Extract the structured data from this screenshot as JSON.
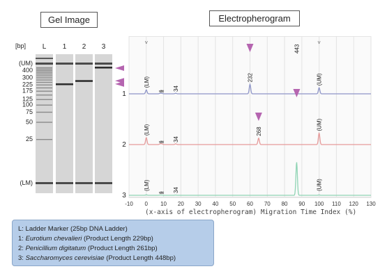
{
  "gel": {
    "title": "Gel Image",
    "unit": "[bp]",
    "lanes": [
      "L",
      "1",
      "2",
      "3"
    ],
    "size_labels": [
      "(UM)",
      "400",
      "300",
      "225",
      "175",
      "125",
      "100",
      "75",
      "50",
      "25",
      "(LM)"
    ],
    "ladder_sizes": [
      400,
      300,
      250,
      225,
      200,
      175,
      150,
      125,
      100,
      75,
      50,
      25
    ],
    "sample_bands": [
      229,
      261,
      448
    ]
  },
  "electropherogram": {
    "title": "Electropherogram",
    "x_caption": "(x-axis of electropherogram)",
    "x_label": "Migration Time Index (%)"
  },
  "legend": {
    "ladder": "L: Ladder Marker (25bp DNA Ladder)",
    "items": [
      {
        "num": "1:",
        "species": "Eurotium chevalieri",
        "product": "(Product Length 229bp)"
      },
      {
        "num": "2:",
        "species": "Penicillium digitatum",
        "product": "(Product Length 261bp)"
      },
      {
        "num": "3:",
        "species": "Saccharomyces cerevisiae",
        "product": "(Product Length 448bp)"
      }
    ]
  },
  "chart_data": [
    {
      "type": "gel",
      "title": "Gel Image",
      "lanes": [
        "L",
        "1",
        "2",
        "3"
      ],
      "y_unit": "bp",
      "y_tick_labels": [
        "(UM)",
        "400",
        "300",
        "225",
        "175",
        "125",
        "100",
        "75",
        "50",
        "25",
        "(LM)"
      ],
      "bands": [
        {
          "lane": "1",
          "size_bp": 229
        },
        {
          "lane": "2",
          "size_bp": 261
        },
        {
          "lane": "3",
          "size_bp": 448
        }
      ],
      "highlight_color": "#b565b0"
    },
    {
      "type": "line",
      "title": "Electropherogram",
      "xlabel": "Migration Time Index (%)",
      "xlim": [
        -10,
        130
      ],
      "x_ticks": [
        -10,
        0,
        10,
        20,
        30,
        40,
        50,
        60,
        70,
        80,
        90,
        100,
        110,
        120,
        130
      ],
      "series": [
        {
          "name": "1",
          "color": "#8e95c8",
          "peaks": [
            {
              "x": 0,
              "height": 0.35,
              "label": "(LM)"
            },
            {
              "x": 8,
              "height": 0.05,
              "label": "6"
            },
            {
              "x": 9,
              "height": 0.05,
              "label": "8"
            },
            {
              "x": 17,
              "height": 0.05,
              "label": "34"
            },
            {
              "x": 60,
              "height": 0.85,
              "label": "232",
              "arrow": true
            },
            {
              "x": 100,
              "height": 0.55,
              "label": "(UM)"
            }
          ]
        },
        {
          "name": "2",
          "color": "#e69a9a",
          "peaks": [
            {
              "x": 0,
              "height": 0.45,
              "label": "(LM)"
            },
            {
              "x": 8,
              "height": 0.05,
              "label": "6"
            },
            {
              "x": 9,
              "height": 0.05,
              "label": "8"
            },
            {
              "x": 17,
              "height": 0.05,
              "label": "34"
            },
            {
              "x": 65,
              "height": 0.42,
              "label": "268",
              "arrow": true
            },
            {
              "x": 100,
              "height": 0.75,
              "label": "(UM)"
            }
          ]
        },
        {
          "name": "3",
          "color": "#8fd4b4",
          "peaks": [
            {
              "x": 0,
              "height": 0.05,
              "label": "(LM)"
            },
            {
              "x": 8,
              "height": 0.03,
              "label": "6"
            },
            {
              "x": 9,
              "height": 0.03,
              "label": "8"
            },
            {
              "x": 17,
              "height": 0.03,
              "label": "34"
            },
            {
              "x": 87,
              "height": 3.4,
              "label": "443",
              "arrow": true
            },
            {
              "x": 100,
              "height": 0.04,
              "label": "(UM)"
            }
          ]
        }
      ],
      "arrow_color": "#b565b0"
    }
  ]
}
